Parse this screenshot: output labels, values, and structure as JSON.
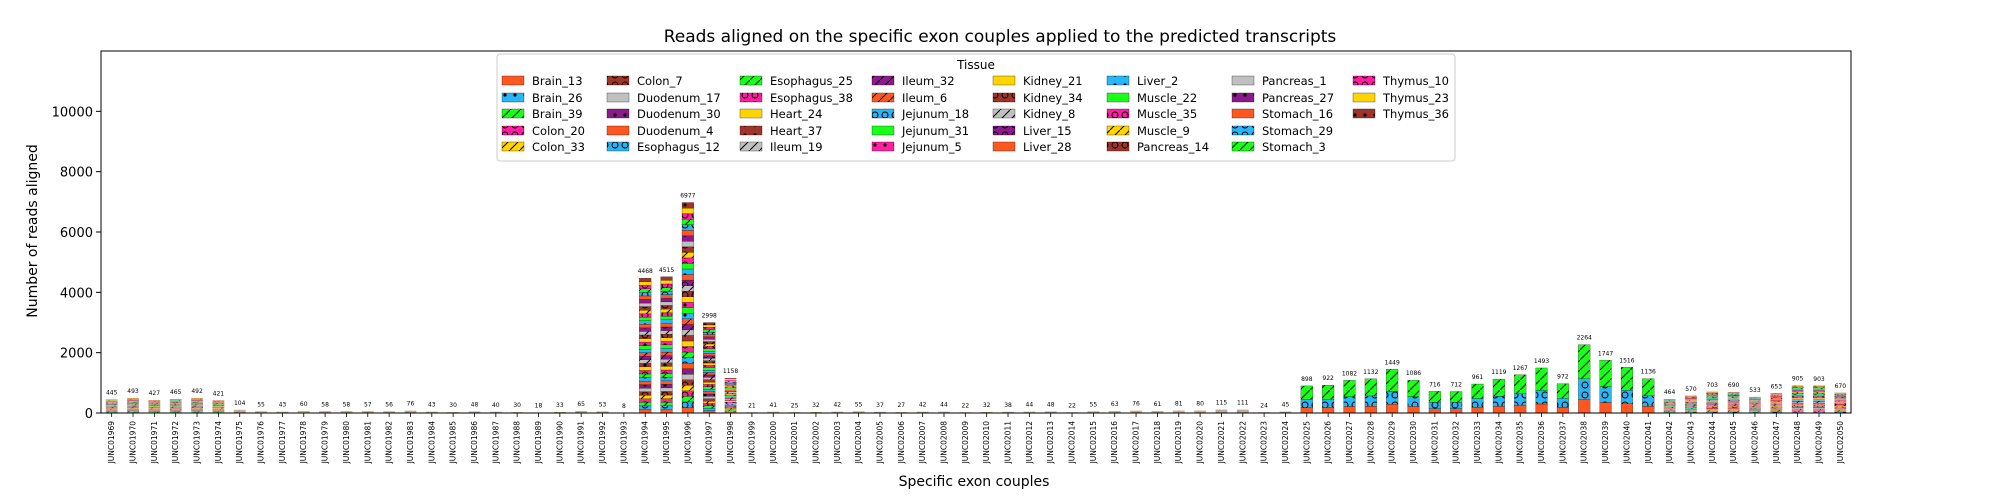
{
  "chart_data": {
    "type": "bar",
    "stacked": true,
    "title": "Reads aligned on the specific exon couples applied to the predicted transcripts",
    "xlabel": "Specific exon couples",
    "ylabel": "Number of reads aligned",
    "ylim": [
      0,
      12000
    ],
    "yticks": [
      0,
      2000,
      4000,
      6000,
      8000,
      10000
    ],
    "grid": false,
    "legend": {
      "title": "Tissue",
      "position": "top-center",
      "entries": [
        {
          "name": "Brain_13",
          "color": "#ff5722",
          "hatch": "none"
        },
        {
          "name": "Brain_26",
          "color": "#29b6f6",
          "hatch": "dots"
        },
        {
          "name": "Brain_39",
          "color": "#19ff19",
          "hatch": "slash"
        },
        {
          "name": "Colon_20",
          "color": "#ff1fa0",
          "hatch": "ring"
        },
        {
          "name": "Colon_33",
          "color": "#ffd400",
          "hatch": "slash"
        },
        {
          "name": "Colon_7",
          "color": "#a0342a",
          "hatch": "ring"
        },
        {
          "name": "Duodenum_17",
          "color": "#c0c0c0",
          "hatch": "none"
        },
        {
          "name": "Duodenum_30",
          "color": "#8b1a8b",
          "hatch": "dots"
        },
        {
          "name": "Duodenum_4",
          "color": "#ff5722",
          "hatch": "none"
        },
        {
          "name": "Esophagus_12",
          "color": "#29b6f6",
          "hatch": "ring"
        },
        {
          "name": "Esophagus_25",
          "color": "#19ff19",
          "hatch": "slash"
        },
        {
          "name": "Esophagus_38",
          "color": "#ff1fa0",
          "hatch": "ring"
        },
        {
          "name": "Heart_24",
          "color": "#ffd400",
          "hatch": "none"
        },
        {
          "name": "Heart_37",
          "color": "#a0342a",
          "hatch": "dots"
        },
        {
          "name": "Ileum_19",
          "color": "#c0c0c0",
          "hatch": "slash"
        },
        {
          "name": "Ileum_32",
          "color": "#8b1a8b",
          "hatch": "slash"
        },
        {
          "name": "Ileum_6",
          "color": "#ff5722",
          "hatch": "slash"
        },
        {
          "name": "Jejunum_18",
          "color": "#29b6f6",
          "hatch": "ring"
        },
        {
          "name": "Jejunum_31",
          "color": "#19ff19",
          "hatch": "none"
        },
        {
          "name": "Jejunum_5",
          "color": "#ff1fa0",
          "hatch": "dots"
        },
        {
          "name": "Kidney_21",
          "color": "#ffd400",
          "hatch": "none"
        },
        {
          "name": "Kidney_34",
          "color": "#a0342a",
          "hatch": "ring"
        },
        {
          "name": "Kidney_8",
          "color": "#c0c0c0",
          "hatch": "slash"
        },
        {
          "name": "Liver_15",
          "color": "#8b1a8b",
          "hatch": "ring"
        },
        {
          "name": "Liver_28",
          "color": "#ff5722",
          "hatch": "none"
        },
        {
          "name": "Liver_2",
          "color": "#29b6f6",
          "hatch": "dots"
        },
        {
          "name": "Muscle_22",
          "color": "#19ff19",
          "hatch": "none"
        },
        {
          "name": "Muscle_35",
          "color": "#ff1fa0",
          "hatch": "ring"
        },
        {
          "name": "Muscle_9",
          "color": "#ffd400",
          "hatch": "slash"
        },
        {
          "name": "Pancreas_14",
          "color": "#a0342a",
          "hatch": "ring"
        },
        {
          "name": "Pancreas_1",
          "color": "#c0c0c0",
          "hatch": "none"
        },
        {
          "name": "Pancreas_27",
          "color": "#8b1a8b",
          "hatch": "dots"
        },
        {
          "name": "Stomach_16",
          "color": "#ff5722",
          "hatch": "none"
        },
        {
          "name": "Stomach_29",
          "color": "#29b6f6",
          "hatch": "ring"
        },
        {
          "name": "Stomach_3",
          "color": "#19ff19",
          "hatch": "slash"
        },
        {
          "name": "Thymus_10",
          "color": "#ff1fa0",
          "hatch": "ring"
        },
        {
          "name": "Thymus_23",
          "color": "#ffd400",
          "hatch": "none"
        },
        {
          "name": "Thymus_36",
          "color": "#a0342a",
          "hatch": "dots"
        }
      ]
    },
    "categories": [
      "JUNC01969",
      "JUNC01970",
      "JUNC01971",
      "JUNC01972",
      "JUNC01973",
      "JUNC01974",
      "JUNC01975",
      "JUNC01976",
      "JUNC01977",
      "JUNC01978",
      "JUNC01979",
      "JUNC01980",
      "JUNC01981",
      "JUNC01982",
      "JUNC01983",
      "JUNC01984",
      "JUNC01985",
      "JUNC01986",
      "JUNC01987",
      "JUNC01988",
      "JUNC01989",
      "JUNC01990",
      "JUNC01991",
      "JUNC01992",
      "JUNC01993",
      "JUNC01994",
      "JUNC01995",
      "JUNC01996",
      "JUNC01997",
      "JUNC01998",
      "JUNC01999",
      "JUNC02000",
      "JUNC02001",
      "JUNC02002",
      "JUNC02003",
      "JUNC02004",
      "JUNC02005",
      "JUNC02006",
      "JUNC02007",
      "JUNC02008",
      "JUNC02009",
      "JUNC02010",
      "JUNC02011",
      "JUNC02012",
      "JUNC02013",
      "JUNC02014",
      "JUNC02015",
      "JUNC02016",
      "JUNC02017",
      "JUNC02018",
      "JUNC02019",
      "JUNC02020",
      "JUNC02021",
      "JUNC02022",
      "JUNC02023",
      "JUNC02024",
      "JUNC02025",
      "JUNC02026",
      "JUNC02027",
      "JUNC02028",
      "JUNC02029",
      "JUNC02030",
      "JUNC02031",
      "JUNC02032",
      "JUNC02033",
      "JUNC02034",
      "JUNC02035",
      "JUNC02036",
      "JUNC02037",
      "JUNC02038",
      "JUNC02039",
      "JUNC02040",
      "JUNC02041",
      "JUNC02042",
      "JUNC02043",
      "JUNC02044",
      "JUNC02045",
      "JUNC02046",
      "JUNC02047",
      "JUNC02048",
      "JUNC02049",
      "JUNC02050"
    ],
    "totals": [
      445,
      493,
      427,
      465,
      492,
      421,
      104,
      55,
      43,
      60,
      58,
      58,
      57,
      56,
      76,
      43,
      30,
      48,
      40,
      30,
      18,
      33,
      65,
      53,
      8,
      4468,
      4515,
      6977,
      2998,
      1158,
      21,
      41,
      25,
      32,
      42,
      55,
      37,
      27,
      42,
      44,
      22,
      32,
      38,
      44,
      48,
      22,
      55,
      63,
      76,
      61,
      81,
      80,
      115,
      111,
      24,
      45,
      898,
      922,
      1082,
      1132,
      1449,
      1086,
      716,
      712,
      961,
      1119,
      1267,
      1493,
      972,
      2264,
      1747,
      1516,
      1136,
      464,
      570,
      703,
      690,
      533,
      653,
      905,
      903,
      670
    ],
    "patterns": [
      "mixed",
      "mixed",
      "mixed",
      "mixed",
      "mixed",
      "mixed",
      "mixed",
      "mixed",
      "mixed",
      "mixed",
      "mixed",
      "mixed",
      "mixed",
      "mixed",
      "mixed",
      "mixed",
      "mixed",
      "mixed",
      "mixed",
      "mixed",
      "mixed",
      "mixed",
      "mixed",
      "mixed",
      "mixed",
      "mixed",
      "mixed",
      "mixed",
      "mixed",
      "mixed",
      "mixed",
      "mixed",
      "mixed",
      "mixed",
      "mixed",
      "mixed",
      "mixed",
      "mixed",
      "mixed",
      "mixed",
      "mixed",
      "mixed",
      "mixed",
      "mixed",
      "mixed",
      "mixed",
      "mixed",
      "mixed",
      "mixed",
      "mixed",
      "mixed",
      "mixed",
      "mixed",
      "mixed",
      "mixed",
      "mixed",
      "three",
      "three",
      "three",
      "three",
      "three",
      "three",
      "three",
      "three",
      "three",
      "three",
      "three",
      "three",
      "three",
      "three",
      "three",
      "three",
      "three",
      "mixed",
      "mixed",
      "mixed",
      "mixed",
      "mixed",
      "mixed",
      "mixed",
      "mixed",
      "mixed"
    ]
  }
}
